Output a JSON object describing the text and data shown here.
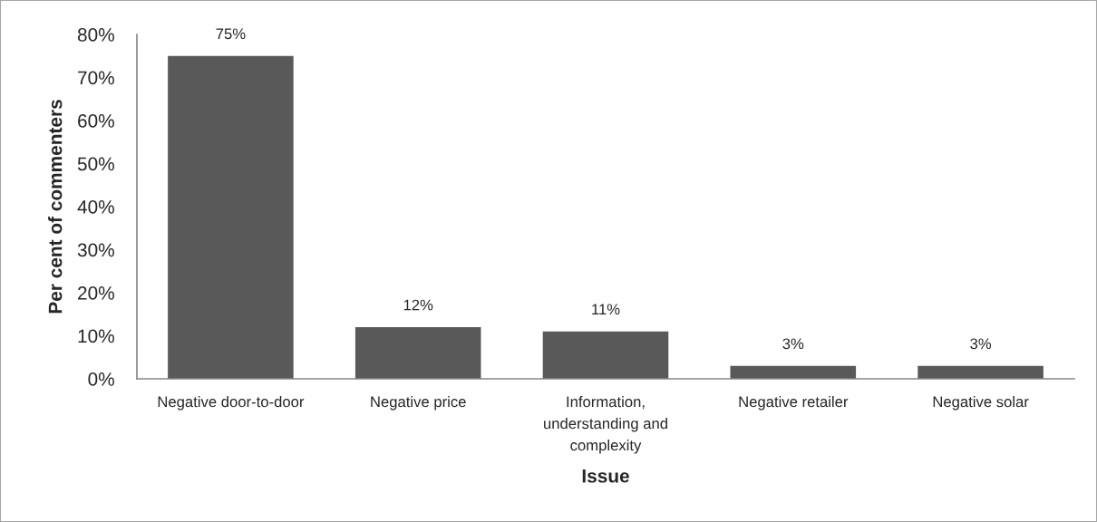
{
  "chart_data": {
    "type": "bar",
    "xlabel": "Issue",
    "ylabel": "Per cent of commenters",
    "categories": [
      "Negative door-to-door",
      "Negative price",
      "Information, understanding and complexity",
      "Negative retailer",
      "Negative solar"
    ],
    "values": [
      75,
      12,
      11,
      3,
      3
    ],
    "color": "#595959",
    "value_labels": [
      "75%",
      "12%",
      "11%",
      "3%",
      "3%"
    ],
    "ylim": [
      0,
      80
    ],
    "yticks": [
      {
        "value": 0,
        "label": "0%"
      },
      {
        "value": 10,
        "label": "10%"
      },
      {
        "value": 20,
        "label": "20%"
      },
      {
        "value": 30,
        "label": "30%"
      },
      {
        "value": 40,
        "label": "40%"
      },
      {
        "value": 50,
        "label": "50%"
      },
      {
        "value": 60,
        "label": "60%"
      },
      {
        "value": 70,
        "label": "70%"
      },
      {
        "value": 80,
        "label": "80%"
      }
    ],
    "grid": false,
    "legend": false
  }
}
